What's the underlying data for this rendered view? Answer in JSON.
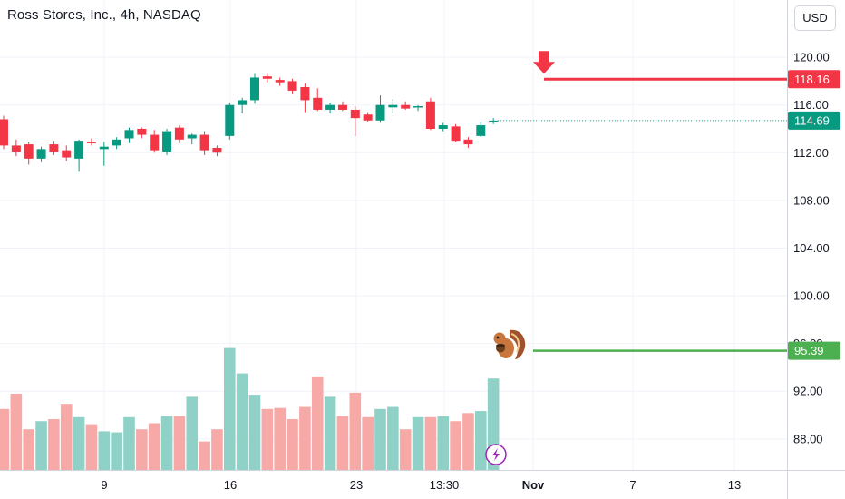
{
  "header": {
    "title": "Ross Stores, Inc., 4h, NASDAQ"
  },
  "controls": {
    "currency": "USD"
  },
  "chart_data": {
    "type": "candlestick",
    "ylim": [
      85.4,
      124.8
    ],
    "y_ticks": [
      "120.00",
      "116.00",
      "112.00",
      "108.00",
      "104.00",
      "100.00",
      "96.00",
      "92.00",
      "88.00"
    ],
    "y_tick_values": [
      120,
      116,
      112,
      108,
      104,
      100,
      96,
      92,
      88
    ],
    "x_ticks": [
      "9",
      "16",
      "23",
      "13:30",
      "Nov",
      "7",
      "13"
    ],
    "candles": [
      {
        "o": 114.8,
        "h": 115.1,
        "l": 112.3,
        "c": 112.6
      },
      {
        "o": 112.6,
        "h": 113.1,
        "l": 111.7,
        "c": 112.1
      },
      {
        "o": 112.7,
        "h": 112.9,
        "l": 111.0,
        "c": 111.5
      },
      {
        "o": 111.5,
        "h": 112.5,
        "l": 111.2,
        "c": 112.3
      },
      {
        "o": 112.7,
        "h": 113.0,
        "l": 111.8,
        "c": 112.1
      },
      {
        "o": 112.2,
        "h": 112.6,
        "l": 111.3,
        "c": 111.6
      },
      {
        "o": 111.5,
        "h": 113.1,
        "l": 110.4,
        "c": 113.0
      },
      {
        "o": 112.9,
        "h": 113.2,
        "l": 112.6,
        "c": 112.8
      },
      {
        "o": 112.3,
        "h": 112.9,
        "l": 110.9,
        "c": 112.5
      },
      {
        "o": 112.6,
        "h": 113.3,
        "l": 112.3,
        "c": 113.1
      },
      {
        "o": 113.2,
        "h": 114.1,
        "l": 112.8,
        "c": 113.9
      },
      {
        "o": 114.0,
        "h": 114.1,
        "l": 113.2,
        "c": 113.5
      },
      {
        "o": 113.5,
        "h": 113.9,
        "l": 112.0,
        "c": 112.2
      },
      {
        "o": 112.1,
        "h": 114.0,
        "l": 111.8,
        "c": 113.8
      },
      {
        "o": 114.1,
        "h": 114.3,
        "l": 112.8,
        "c": 113.1
      },
      {
        "o": 113.2,
        "h": 113.6,
        "l": 112.7,
        "c": 113.5
      },
      {
        "o": 113.5,
        "h": 113.8,
        "l": 111.8,
        "c": 112.2
      },
      {
        "o": 112.4,
        "h": 112.6,
        "l": 111.7,
        "c": 112.0
      },
      {
        "o": 113.4,
        "h": 116.2,
        "l": 113.1,
        "c": 116.0
      },
      {
        "o": 116.0,
        "h": 116.6,
        "l": 115.3,
        "c": 116.4
      },
      {
        "o": 116.4,
        "h": 118.6,
        "l": 116.1,
        "c": 118.3
      },
      {
        "o": 118.4,
        "h": 118.6,
        "l": 117.9,
        "c": 118.2
      },
      {
        "o": 118.1,
        "h": 118.3,
        "l": 117.6,
        "c": 117.9
      },
      {
        "o": 118.0,
        "h": 118.2,
        "l": 116.9,
        "c": 117.2
      },
      {
        "o": 117.5,
        "h": 117.8,
        "l": 115.4,
        "c": 116.4
      },
      {
        "o": 116.6,
        "h": 117.4,
        "l": 115.5,
        "c": 115.6
      },
      {
        "o": 115.6,
        "h": 116.2,
        "l": 115.3,
        "c": 116.0
      },
      {
        "o": 116.0,
        "h": 116.3,
        "l": 115.5,
        "c": 115.6
      },
      {
        "o": 115.6,
        "h": 115.9,
        "l": 113.4,
        "c": 114.9
      },
      {
        "o": 115.2,
        "h": 115.4,
        "l": 114.6,
        "c": 114.7
      },
      {
        "o": 114.7,
        "h": 116.8,
        "l": 114.5,
        "c": 116.0
      },
      {
        "o": 115.8,
        "h": 116.5,
        "l": 115.3,
        "c": 116.0
      },
      {
        "o": 116.0,
        "h": 116.3,
        "l": 115.6,
        "c": 115.7
      },
      {
        "o": 115.8,
        "h": 116.0,
        "l": 115.5,
        "c": 115.9
      },
      {
        "o": 116.3,
        "h": 116.6,
        "l": 113.9,
        "c": 114.0
      },
      {
        "o": 114.0,
        "h": 114.5,
        "l": 113.8,
        "c": 114.3
      },
      {
        "o": 114.2,
        "h": 114.4,
        "l": 112.9,
        "c": 113.0
      },
      {
        "o": 113.1,
        "h": 113.3,
        "l": 112.4,
        "c": 112.7
      },
      {
        "o": 113.4,
        "h": 114.6,
        "l": 113.3,
        "c": 114.3
      },
      {
        "o": 114.6,
        "h": 114.9,
        "l": 114.4,
        "c": 114.69
      }
    ],
    "volumes": [
      0.6,
      0.75,
      0.4,
      0.48,
      0.5,
      0.65,
      0.52,
      0.45,
      0.38,
      0.37,
      0.52,
      0.4,
      0.46,
      0.53,
      0.53,
      0.72,
      0.28,
      0.4,
      1.2,
      0.95,
      0.74,
      0.6,
      0.61,
      0.5,
      0.62,
      0.92,
      0.72,
      0.53,
      0.76,
      0.52,
      0.6,
      0.62,
      0.4,
      0.52,
      0.52,
      0.53,
      0.48,
      0.56,
      0.58,
      0.9
    ],
    "current_price": {
      "value": 114.69,
      "label": "114.69"
    },
    "price_lines": [
      {
        "value": 118.16,
        "label": "118.16",
        "color": "#f23645"
      },
      {
        "value": 95.39,
        "label": "95.39",
        "color": "#4caf50"
      }
    ]
  },
  "colors": {
    "up": "#089981",
    "down": "#f23645",
    "up_volume": "#8fd1c7",
    "down_volume": "#f7a9a7",
    "accent_purple": "#9c27b0"
  },
  "icons": {
    "down_arrow": "arrow-down-icon",
    "squirrel": "squirrel-icon",
    "flash": "lightning-icon"
  }
}
